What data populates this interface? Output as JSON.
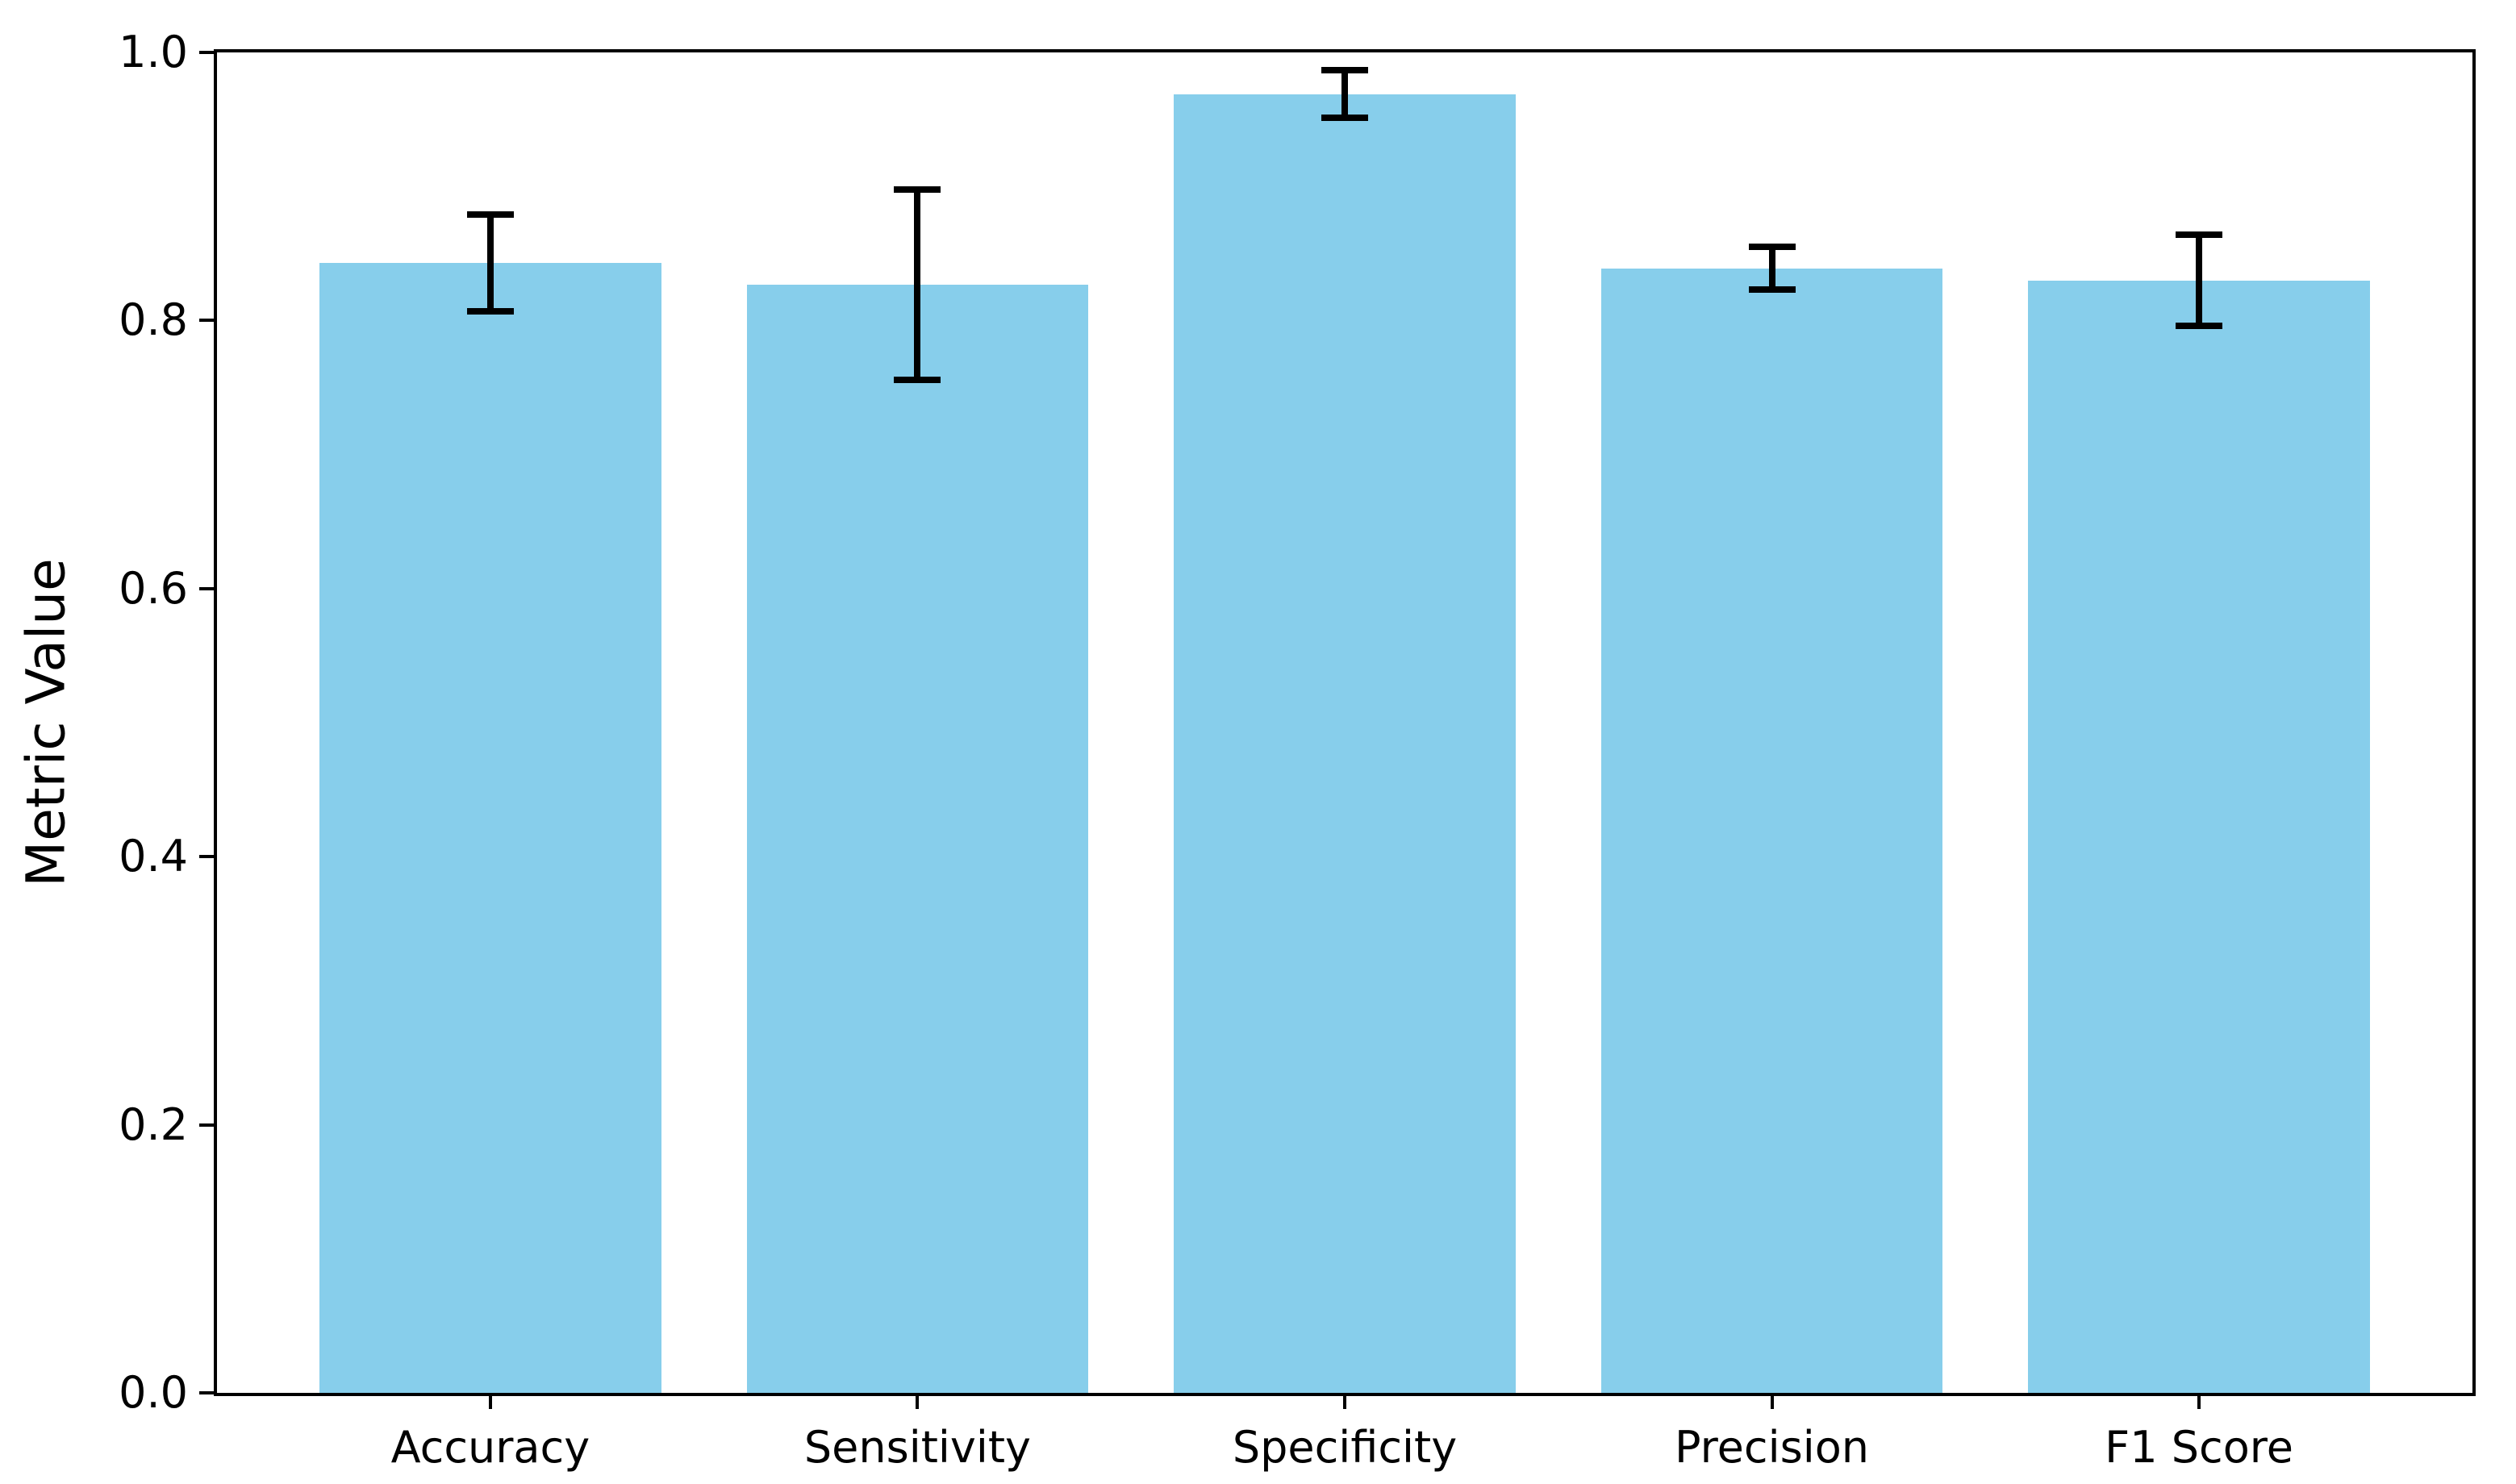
{
  "chart_data": {
    "type": "bar",
    "categories": [
      "Accuracy",
      "Sensitivity",
      "Specificity",
      "Precision",
      "F1 Score"
    ],
    "values": [
      0.843,
      0.827,
      0.969,
      0.839,
      0.83
    ],
    "error_bars": [
      0.036,
      0.071,
      0.018,
      0.016,
      0.034
    ],
    "title": "",
    "xlabel": "",
    "ylabel": "Metric Value",
    "ylim": [
      0.0,
      1.0
    ],
    "ytick_labels": [
      "0.0",
      "0.2",
      "0.4",
      "0.6",
      "0.8",
      "1.0"
    ],
    "bar_color": "#87CEEB",
    "error_bar_color": "#000000",
    "axis_color": "#000000",
    "background_color": "#ffffff",
    "bar_width_fraction": 0.8,
    "grid": false,
    "legend": null
  }
}
